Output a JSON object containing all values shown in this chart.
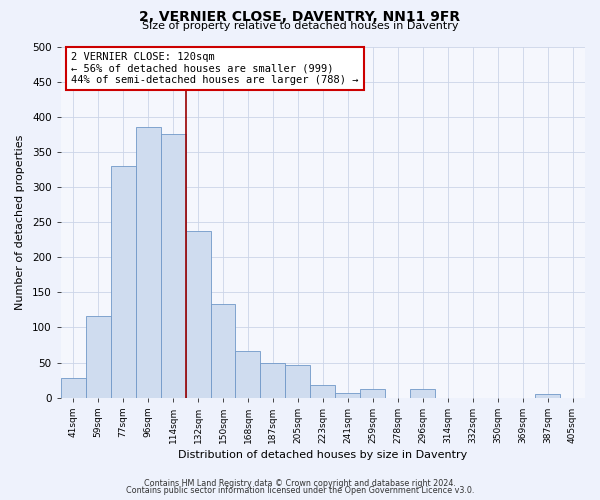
{
  "title": "2, VERNIER CLOSE, DAVENTRY, NN11 9FR",
  "subtitle": "Size of property relative to detached houses in Daventry",
  "xlabel": "Distribution of detached houses by size in Daventry",
  "ylabel": "Number of detached properties",
  "categories": [
    "41sqm",
    "59sqm",
    "77sqm",
    "96sqm",
    "114sqm",
    "132sqm",
    "150sqm",
    "168sqm",
    "187sqm",
    "205sqm",
    "223sqm",
    "241sqm",
    "259sqm",
    "278sqm",
    "296sqm",
    "314sqm",
    "332sqm",
    "350sqm",
    "369sqm",
    "387sqm",
    "405sqm"
  ],
  "values": [
    28,
    116,
    330,
    385,
    375,
    237,
    133,
    67,
    50,
    46,
    18,
    7,
    13,
    0,
    12,
    0,
    0,
    0,
    0,
    5,
    0
  ],
  "bar_color": "#cfdcef",
  "bar_edge_color": "#7098c8",
  "vline_x_index": 4.5,
  "vline_color": "#990000",
  "annotation_line1": "2 VERNIER CLOSE: 120sqm",
  "annotation_line2": "← 56% of detached houses are smaller (999)",
  "annotation_line3": "44% of semi-detached houses are larger (788) →",
  "annotation_box_color": "#ffffff",
  "annotation_box_edge_color": "#cc0000",
  "ylim": [
    0,
    500
  ],
  "yticks": [
    0,
    50,
    100,
    150,
    200,
    250,
    300,
    350,
    400,
    450,
    500
  ],
  "footer1": "Contains HM Land Registry data © Crown copyright and database right 2024.",
  "footer2": "Contains public sector information licensed under the Open Government Licence v3.0.",
  "bg_color": "#eef2fc",
  "plot_bg_color": "#f5f7fd",
  "grid_color": "#ccd5e8"
}
